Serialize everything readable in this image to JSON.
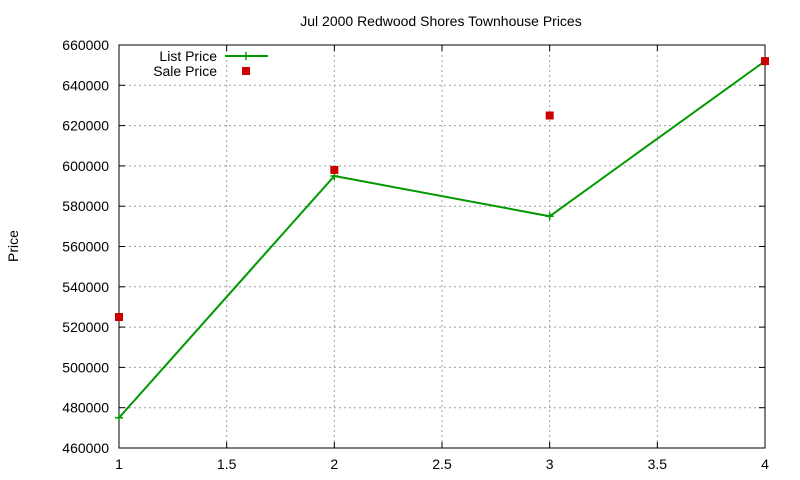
{
  "chart_data": {
    "type": "line",
    "title": "Jul 2000 Redwood Shores Townhouse Prices",
    "xlabel": "",
    "ylabel": "Price",
    "xlim": [
      1,
      4
    ],
    "ylim": [
      460000,
      660000
    ],
    "x_ticks": [
      1,
      1.5,
      2,
      2.5,
      3,
      3.5,
      4
    ],
    "x_tick_labels": [
      "1",
      "1.5",
      "2",
      "2.5",
      "3",
      "3.5",
      "4"
    ],
    "y_ticks": [
      460000,
      480000,
      500000,
      520000,
      540000,
      560000,
      580000,
      600000,
      620000,
      640000,
      660000
    ],
    "y_tick_labels": [
      "460000",
      "480000",
      "500000",
      "520000",
      "540000",
      "560000",
      "580000",
      "600000",
      "620000",
      "640000",
      "660000"
    ],
    "grid": true,
    "legend_position": "top-left",
    "series": [
      {
        "name": "List Price",
        "style": "linespoints",
        "marker": "plus",
        "color": "#009900",
        "x": [
          1,
          2,
          3,
          4
        ],
        "y": [
          475000,
          595000,
          575000,
          652000
        ]
      },
      {
        "name": "Sale Price",
        "style": "points",
        "marker": "square",
        "color": "#cc0000",
        "x": [
          1,
          2,
          3,
          4
        ],
        "y": [
          525000,
          598000,
          625000,
          652000
        ]
      }
    ]
  }
}
